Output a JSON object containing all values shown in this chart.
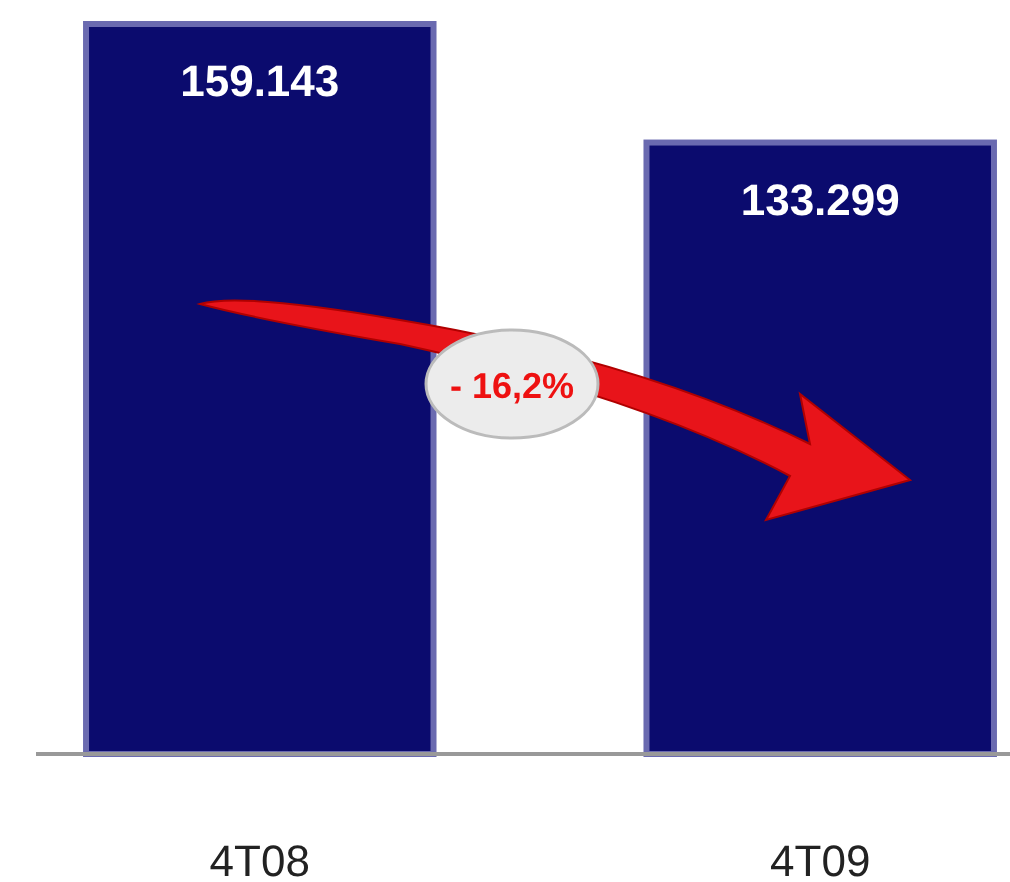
{
  "chart_data": {
    "type": "bar",
    "categories": [
      "4T08",
      "4T09"
    ],
    "values": [
      159143,
      133299
    ],
    "value_labels": [
      "159.143",
      "133.299"
    ],
    "color": "#0b0b6e",
    "annotations": [
      "- 16,2%"
    ]
  }
}
